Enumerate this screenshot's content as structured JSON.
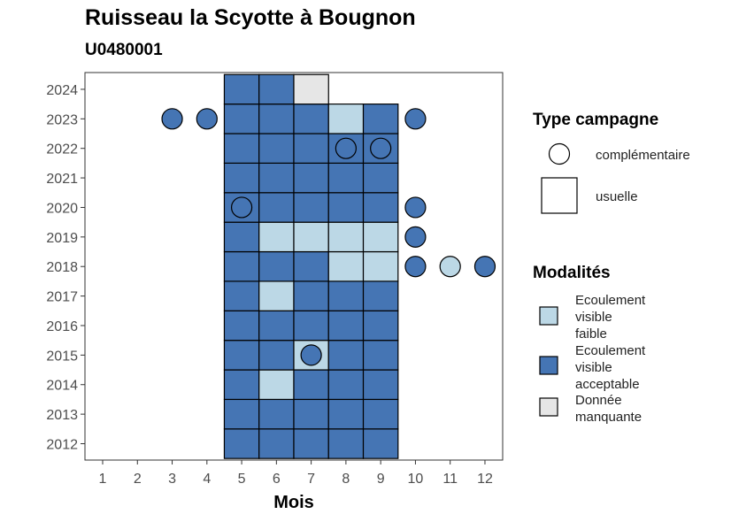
{
  "chart_data": {
    "type": "heatmap",
    "title": "Ruisseau la Scyotte à Bougnon",
    "subtitle": "U0480001",
    "xlabel": "Mois",
    "ylabel": "",
    "x_ticks": [
      "1",
      "2",
      "3",
      "4",
      "5",
      "6",
      "7",
      "8",
      "9",
      "10",
      "11",
      "12"
    ],
    "y_ticks": [
      "2012",
      "2013",
      "2014",
      "2015",
      "2016",
      "2017",
      "2018",
      "2019",
      "2020",
      "2021",
      "2022",
      "2023",
      "2024"
    ],
    "xlim": [
      1,
      12
    ],
    "ylim": [
      2012,
      2024
    ],
    "grid": false,
    "colors": {
      "Ecoulement visible faible": "#bcd8e6",
      "Ecoulement visible acceptable": "#4575b4",
      "Donnée manquante": "#e6e6e6"
    },
    "legend_campaign": {
      "title": "Type campagne",
      "items": [
        {
          "label": "complémentaire",
          "shape": "circle"
        },
        {
          "label": "usuelle",
          "shape": "square"
        }
      ]
    },
    "legend_modalites": {
      "title": "Modalités",
      "items": [
        {
          "label_lines": [
            "Ecoulement",
            "visible",
            "faible"
          ],
          "modalite": "Ecoulement visible faible"
        },
        {
          "label_lines": [
            "Ecoulement",
            "visible",
            "acceptable"
          ],
          "modalite": "Ecoulement visible acceptable"
        },
        {
          "label_lines": [
            "Donnée",
            "manquante"
          ],
          "modalite": "Donnée manquante"
        }
      ]
    },
    "usuelle": [
      {
        "year": 2012,
        "values": {
          "5": "A",
          "6": "A",
          "7": "A",
          "8": "A",
          "9": "A"
        }
      },
      {
        "year": 2013,
        "values": {
          "5": "A",
          "6": "A",
          "7": "A",
          "8": "A",
          "9": "A"
        }
      },
      {
        "year": 2014,
        "values": {
          "5": "A",
          "6": "F",
          "7": "A",
          "8": "A",
          "9": "A"
        }
      },
      {
        "year": 2015,
        "values": {
          "5": "A",
          "6": "A",
          "7": "F",
          "8": "A",
          "9": "A"
        }
      },
      {
        "year": 2016,
        "values": {
          "5": "A",
          "6": "A",
          "7": "A",
          "8": "A",
          "9": "A"
        }
      },
      {
        "year": 2017,
        "values": {
          "5": "A",
          "6": "F",
          "7": "A",
          "8": "A",
          "9": "A"
        }
      },
      {
        "year": 2018,
        "values": {
          "5": "A",
          "6": "A",
          "7": "A",
          "8": "F",
          "9": "F"
        }
      },
      {
        "year": 2019,
        "values": {
          "5": "A",
          "6": "F",
          "7": "F",
          "8": "F",
          "9": "F"
        }
      },
      {
        "year": 2020,
        "values": {
          "5": "A",
          "6": "A",
          "7": "A",
          "8": "A",
          "9": "A"
        }
      },
      {
        "year": 2021,
        "values": {
          "5": "A",
          "6": "A",
          "7": "A",
          "8": "A",
          "9": "A"
        }
      },
      {
        "year": 2022,
        "values": {
          "5": "A",
          "6": "A",
          "7": "A",
          "8": "A",
          "9": "A"
        }
      },
      {
        "year": 2023,
        "values": {
          "5": "A",
          "6": "A",
          "7": "A",
          "8": "F",
          "9": "A"
        }
      },
      {
        "year": 2024,
        "values": {
          "5": "A",
          "6": "A",
          "7": "M"
        }
      }
    ],
    "value_codes": {
      "F": "Ecoulement visible faible",
      "A": "Ecoulement visible acceptable",
      "M": "Donnée manquante"
    },
    "complementaire": [
      {
        "year": 2023,
        "month": 3,
        "code": "A"
      },
      {
        "year": 2023,
        "month": 4,
        "code": "A"
      },
      {
        "year": 2023,
        "month": 10,
        "code": "A"
      },
      {
        "year": 2022,
        "month": 8,
        "code": "A"
      },
      {
        "year": 2022,
        "month": 9,
        "code": "A"
      },
      {
        "year": 2020,
        "month": 5,
        "code": "A"
      },
      {
        "year": 2020,
        "month": 10,
        "code": "A"
      },
      {
        "year": 2019,
        "month": 10,
        "code": "A"
      },
      {
        "year": 2018,
        "month": 10,
        "code": "A"
      },
      {
        "year": 2018,
        "month": 11,
        "code": "F"
      },
      {
        "year": 2018,
        "month": 12,
        "code": "A"
      },
      {
        "year": 2015,
        "month": 7,
        "code": "A"
      }
    ]
  }
}
